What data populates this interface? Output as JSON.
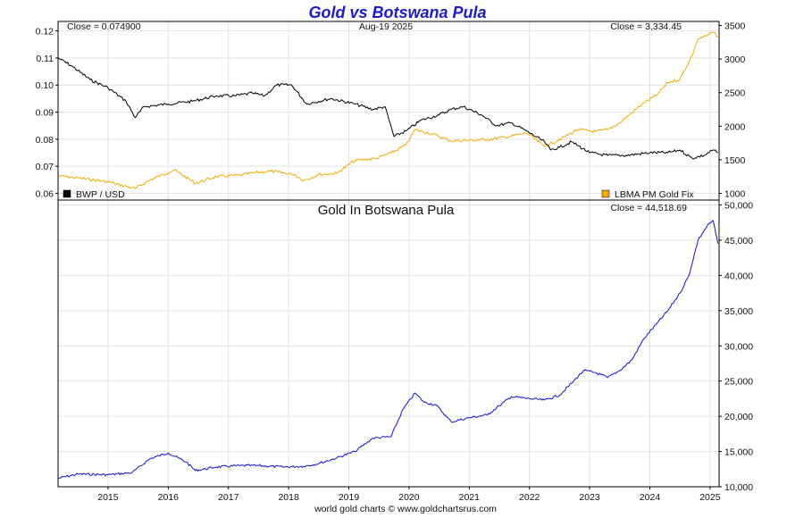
{
  "chart_data": [
    {
      "type": "line",
      "title": "Gold vs Botswana Pula",
      "date_label": "Aug-19  2025",
      "close_left": "Close = 0.074900",
      "close_right": "Close = 3,334.45",
      "legend_left": "BWP / USD",
      "legend_right": "LBMA PM Gold Fix",
      "x_ticks": [
        "2015",
        "2016",
        "2017",
        "2018",
        "2019",
        "2020",
        "2021",
        "2022",
        "2023",
        "2024",
        "2025"
      ],
      "x_range": [
        2014.67,
        2025.65
      ],
      "y_left_ticks": [
        "0.12",
        "0.11",
        "0.10",
        "0.09",
        "0.08",
        "0.07",
        "0.06"
      ],
      "y_left_range": [
        0.0575,
        0.1235
      ],
      "y_right_ticks": [
        "3500",
        "3000",
        "2500",
        "2000",
        "1500",
        "1000"
      ],
      "y_right_range": [
        900,
        3560
      ],
      "grid": true,
      "series": [
        {
          "name": "BWP / USD",
          "axis": "left",
          "color": "#000000",
          "x": [
            2014.67,
            2014.9,
            2015.2,
            2015.5,
            2015.8,
            2015.95,
            2016.1,
            2016.5,
            2016.9,
            2017.3,
            2017.6,
            2017.9,
            2018.1,
            2018.3,
            2018.55,
            2018.8,
            2019.2,
            2019.6,
            2019.9,
            2020.1,
            2020.25,
            2020.45,
            2020.7,
            2021.0,
            2021.2,
            2021.4,
            2021.7,
            2021.95,
            2022.2,
            2022.45,
            2022.75,
            2022.85,
            2023.0,
            2023.2,
            2023.5,
            2023.8,
            2024.1,
            2024.5,
            2024.8,
            2025.0,
            2025.2,
            2025.4,
            2025.55,
            2025.63
          ],
          "values": [
            0.11,
            0.107,
            0.102,
            0.099,
            0.094,
            0.088,
            0.092,
            0.093,
            0.094,
            0.096,
            0.096,
            0.097,
            0.096,
            0.1,
            0.1,
            0.093,
            0.095,
            0.093,
            0.091,
            0.092,
            0.081,
            0.083,
            0.087,
            0.089,
            0.091,
            0.092,
            0.089,
            0.085,
            0.086,
            0.083,
            0.079,
            0.076,
            0.077,
            0.079,
            0.075,
            0.074,
            0.074,
            0.075,
            0.075,
            0.076,
            0.073,
            0.074,
            0.076,
            0.075
          ]
        },
        {
          "name": "LBMA PM Gold Fix",
          "axis": "right",
          "color": "#f5a800",
          "x": [
            2014.67,
            2015.0,
            2015.5,
            2015.95,
            2016.2,
            2016.6,
            2016.95,
            2017.3,
            2017.7,
            2017.95,
            2018.2,
            2018.6,
            2018.75,
            2019.0,
            2019.3,
            2019.6,
            2019.95,
            2020.2,
            2020.45,
            2020.6,
            2020.9,
            2021.2,
            2021.5,
            2021.8,
            2022.2,
            2022.45,
            2022.75,
            2023.0,
            2023.3,
            2023.6,
            2023.8,
            2024.0,
            2024.2,
            2024.4,
            2024.6,
            2024.8,
            2025.0,
            2025.2,
            2025.3,
            2025.45,
            2025.55,
            2025.63
          ],
          "values": [
            1260,
            1230,
            1170,
            1070,
            1200,
            1350,
            1150,
            1250,
            1270,
            1310,
            1330,
            1280,
            1190,
            1280,
            1300,
            1490,
            1520,
            1600,
            1720,
            1950,
            1880,
            1780,
            1790,
            1800,
            1850,
            1900,
            1700,
            1800,
            1950,
            1920,
            1950,
            2050,
            2200,
            2350,
            2450,
            2650,
            2700,
            3050,
            3300,
            3350,
            3400,
            3334
          ]
        }
      ]
    },
    {
      "type": "line",
      "title": "Gold In Botswana Pula",
      "close_right": "Close = 44,518.69",
      "x_ticks": [
        "2015",
        "2016",
        "2017",
        "2018",
        "2019",
        "2020",
        "2021",
        "2022",
        "2023",
        "2024",
        "2025"
      ],
      "x_range": [
        2014.67,
        2025.65
      ],
      "y_right_ticks": [
        "50,000",
        "45,000",
        "40,000",
        "35,000",
        "30,000",
        "25,000",
        "20,000",
        "15,000",
        "10,000"
      ],
      "y_range": [
        10000,
        50700
      ],
      "grid": true,
      "series": [
        {
          "name": "Gold In Botswana Pula",
          "color": "#1010d8",
          "x": [
            2014.67,
            2015.0,
            2015.5,
            2015.9,
            2016.2,
            2016.5,
            2016.8,
            2016.95,
            2017.3,
            2017.7,
            2018.0,
            2018.4,
            2018.75,
            2019.0,
            2019.3,
            2019.6,
            2019.9,
            2020.2,
            2020.4,
            2020.6,
            2020.75,
            2020.95,
            2021.2,
            2021.5,
            2021.8,
            2022.0,
            2022.2,
            2022.5,
            2022.75,
            2023.0,
            2023.2,
            2023.4,
            2023.6,
            2023.8,
            2024.0,
            2024.2,
            2024.4,
            2024.6,
            2024.8,
            2025.0,
            2025.15,
            2025.3,
            2025.45,
            2025.55,
            2025.63
          ],
          "values": [
            11200,
            11800,
            11700,
            12000,
            14000,
            14800,
            13500,
            12300,
            12800,
            13000,
            13000,
            12800,
            12900,
            13300,
            14100,
            15000,
            16900,
            17100,
            21000,
            23300,
            22000,
            21600,
            19200,
            19800,
            20200,
            21500,
            22800,
            22500,
            22300,
            23000,
            24700,
            26500,
            26200,
            25500,
            26500,
            28000,
            31000,
            33000,
            35000,
            37500,
            40000,
            45000,
            47000,
            47800,
            44519
          ]
        }
      ]
    }
  ],
  "footer": "world gold charts © www.goldchartsrus.com"
}
